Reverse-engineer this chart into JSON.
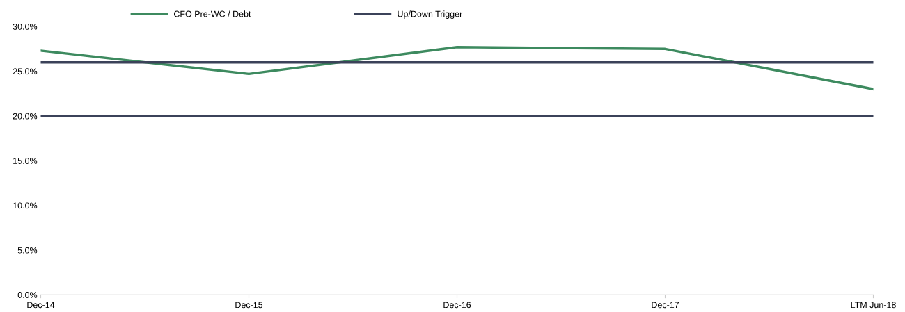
{
  "chart_data": {
    "type": "line",
    "categories": [
      "Dec-14",
      "Dec-15",
      "Dec-16",
      "Dec-17",
      "LTM Jun-18"
    ],
    "series": [
      {
        "name": "CFO Pre-WC / Debt",
        "color": "#3d8a5f",
        "values": [
          27.3,
          24.7,
          27.7,
          27.5,
          23.0
        ]
      },
      {
        "name": "Up/Down Trigger",
        "color": "#3b4259",
        "values": [
          26.0,
          26.0,
          26.0,
          26.0,
          26.0
        ]
      },
      {
        "color": "#3b4259",
        "values": [
          20.0,
          20.0,
          20.0,
          20.0,
          20.0
        ]
      }
    ],
    "ylim": [
      0,
      30
    ],
    "yticks": [
      {
        "value": 0,
        "label": "0.0%"
      },
      {
        "value": 5,
        "label": "5.0%"
      },
      {
        "value": 10,
        "label": "10.0%"
      },
      {
        "value": 15,
        "label": "15.0%"
      },
      {
        "value": 20,
        "label": "20.0%"
      },
      {
        "value": 25,
        "label": "25.0%"
      },
      {
        "value": 30,
        "label": "30.0%"
      }
    ],
    "grid": false,
    "legend": "top left",
    "marker": "none",
    "line_style": "solid"
  }
}
